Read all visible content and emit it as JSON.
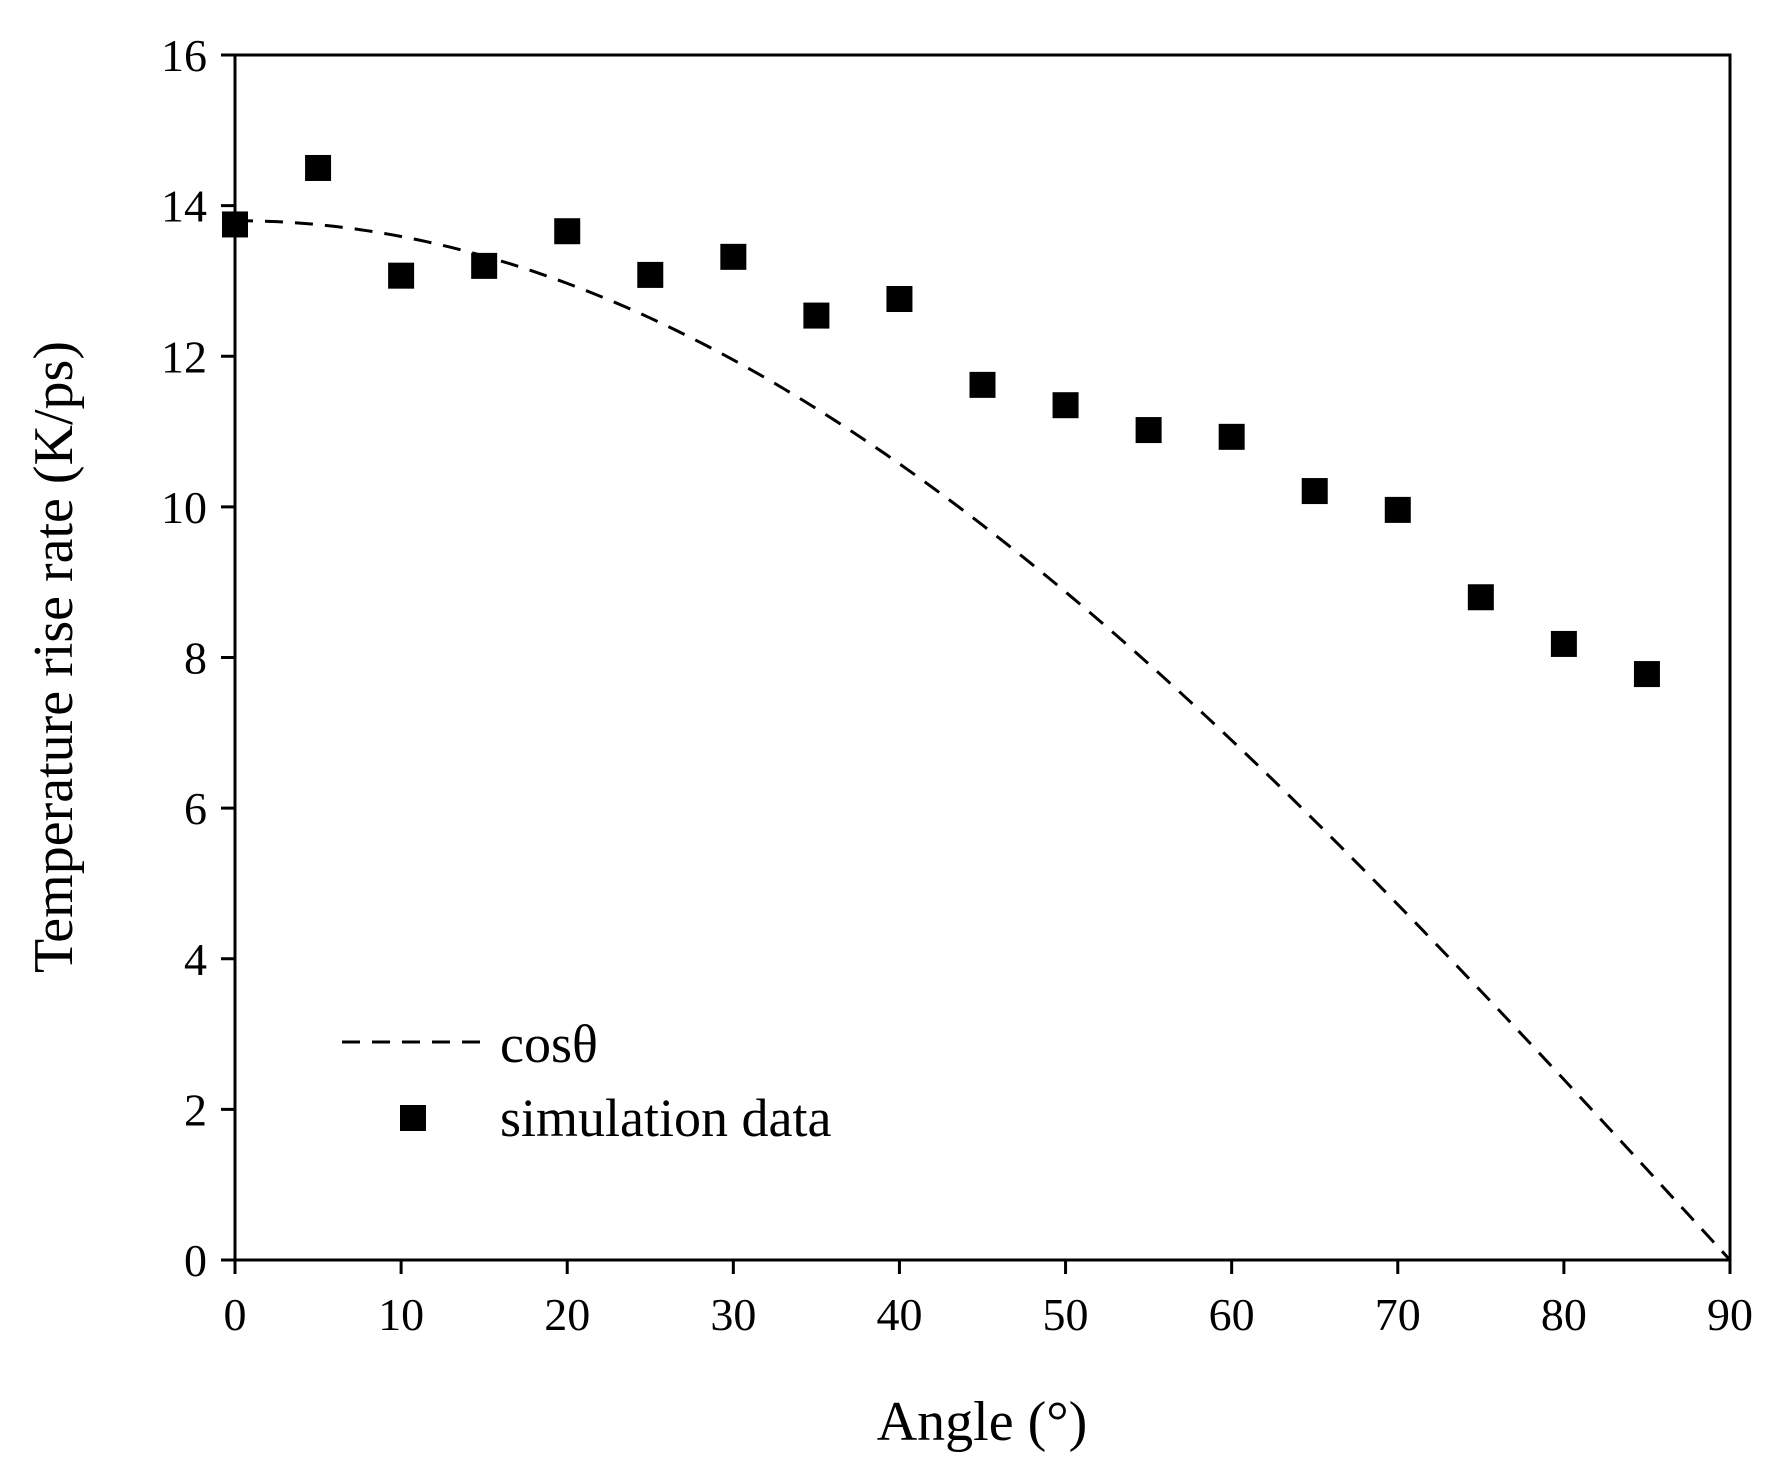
{
  "chart_data": {
    "type": "scatter",
    "title": "",
    "xlabel": "Angle (°)",
    "ylabel": "Temperature rise rate (K/ps)",
    "xlim": [
      0,
      90
    ],
    "ylim": [
      0,
      16
    ],
    "xticks": [
      0,
      10,
      20,
      30,
      40,
      50,
      60,
      70,
      80,
      90
    ],
    "yticks": [
      0,
      2,
      4,
      6,
      8,
      10,
      12,
      14,
      16
    ],
    "grid": false,
    "legend_position": "bottom-left",
    "series": [
      {
        "name": "cosθ",
        "kind": "line",
        "style": "dashed",
        "amplitude": 13.8,
        "formula": "13.8*cos(angle)",
        "x": [
          0,
          5,
          10,
          15,
          20,
          25,
          30,
          35,
          40,
          45,
          50,
          55,
          60,
          65,
          70,
          75,
          80,
          85,
          90
        ],
        "values": [
          13.8,
          13.75,
          13.59,
          13.33,
          12.97,
          12.51,
          11.95,
          11.3,
          10.57,
          9.76,
          8.87,
          7.92,
          6.9,
          5.83,
          4.72,
          3.57,
          2.4,
          1.2,
          0
        ]
      },
      {
        "name": "simulation data",
        "kind": "scatter",
        "marker": "square",
        "x": [
          0,
          5,
          10,
          15,
          20,
          25,
          30,
          35,
          40,
          45,
          50,
          55,
          60,
          65,
          70,
          75,
          80,
          85
        ],
        "values": [
          13.75,
          14.5,
          13.07,
          13.2,
          13.66,
          13.08,
          13.32,
          12.54,
          12.76,
          11.62,
          11.35,
          11.02,
          10.93,
          10.21,
          9.96,
          8.8,
          8.18,
          7.78
        ]
      }
    ],
    "colors": {
      "axis": "#000000",
      "line": "#000000",
      "marker": "#000000",
      "background": "#ffffff"
    }
  }
}
